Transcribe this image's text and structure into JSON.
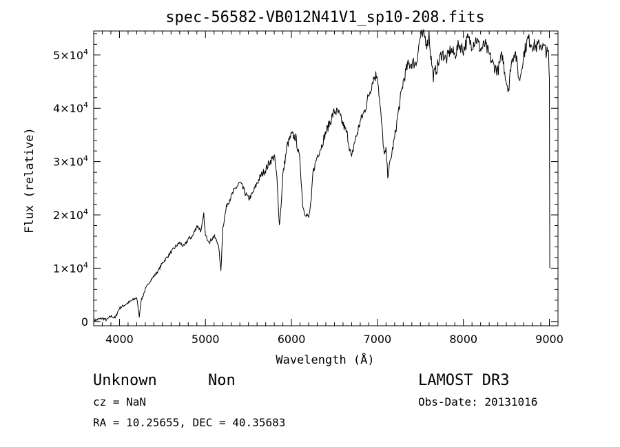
{
  "chart_data": {
    "type": "line",
    "title": "spec-56582-VB012N41V1_sp10-208.fits",
    "xlabel": "Wavelength (Å)",
    "ylabel": "Flux (relative)",
    "xlim": [
      3700,
      9100
    ],
    "ylim": [
      -800,
      54500
    ],
    "xticks": [
      4000,
      5000,
      6000,
      7000,
      8000,
      9000
    ],
    "xtick_labels": [
      "4000",
      "5000",
      "6000",
      "7000",
      "8000",
      "9000"
    ],
    "yticks": [
      0,
      10000,
      20000,
      30000,
      40000,
      50000
    ],
    "ytick_labels": [
      {
        "mant": "0",
        "exp": ""
      },
      {
        "mant": "1×10",
        "exp": "4"
      },
      {
        "mant": "2×10",
        "exp": "4"
      },
      {
        "mant": "3×10",
        "exp": "4"
      },
      {
        "mant": "4×10",
        "exp": "4"
      },
      {
        "mant": "5×10",
        "exp": "4"
      }
    ],
    "grid": false,
    "series": [
      {
        "name": "flux",
        "x": [
          3710,
          3750,
          3800,
          3850,
          3900,
          3950,
          3980,
          4000,
          4050,
          4100,
          4150,
          4200,
          4230,
          4250,
          4300,
          4350,
          4400,
          4450,
          4500,
          4550,
          4600,
          4650,
          4700,
          4750,
          4800,
          4850,
          4900,
          4950,
          4980,
          5000,
          5050,
          5100,
          5150,
          5180,
          5200,
          5250,
          5300,
          5350,
          5400,
          5450,
          5500,
          5550,
          5600,
          5650,
          5700,
          5750,
          5800,
          5830,
          5860,
          5880,
          5900,
          5950,
          6000,
          6050,
          6100,
          6130,
          6150,
          6200,
          6230,
          6250,
          6300,
          6350,
          6400,
          6450,
          6500,
          6550,
          6600,
          6650,
          6700,
          6730,
          6760,
          6800,
          6850,
          6900,
          6950,
          7000,
          7030,
          7060,
          7080,
          7100,
          7120,
          7150,
          7200,
          7250,
          7300,
          7350,
          7400,
          7450,
          7500,
          7550,
          7580,
          7600,
          7620,
          7650,
          7700,
          7750,
          7800,
          7850,
          7900,
          7950,
          8000,
          8050,
          8100,
          8150,
          8200,
          8250,
          8300,
          8350,
          8400,
          8450,
          8500,
          8530,
          8550,
          8600,
          8650,
          8700,
          8750,
          8800,
          8850,
          8900,
          8950,
          8990,
          9000,
          9005
        ],
        "y": [
          200,
          400,
          600,
          300,
          1000,
          700,
          1800,
          2500,
          3000,
          3500,
          4000,
          4500,
          1000,
          3800,
          6000,
          7500,
          8500,
          9500,
          11000,
          12000,
          13000,
          14000,
          14800,
          14000,
          15500,
          16000,
          18000,
          17000,
          20000,
          16000,
          15000,
          16000,
          14500,
          9500,
          17500,
          22000,
          23500,
          25000,
          26000,
          24500,
          23000,
          24000,
          26000,
          27500,
          28500,
          30000,
          31000,
          27000,
          18000,
          22000,
          27500,
          33000,
          35000,
          34500,
          30000,
          22000,
          20500,
          19500,
          22500,
          28000,
          31000,
          33000,
          35500,
          37500,
          39500,
          39000,
          37000,
          35000,
          30500,
          33500,
          35000,
          37500,
          39500,
          42500,
          45500,
          46500,
          40500,
          35000,
          31000,
          32000,
          27500,
          30000,
          34500,
          40000,
          45000,
          48000,
          48500,
          48500,
          53500,
          53500,
          52000,
          54000,
          50000,
          46000,
          48000,
          50500,
          49000,
          51000,
          50000,
          52000,
          51000,
          53000,
          52000,
          53000,
          51000,
          52000,
          50000,
          48000,
          47000,
          50000,
          45000,
          43500,
          48000,
          51000,
          45000,
          50000,
          53000,
          52000,
          51500,
          52000,
          51000,
          50000,
          45000,
          10000
        ]
      }
    ]
  },
  "annotations": {
    "object_class": "Unknown",
    "object_subclass": "Non",
    "survey": "LAMOST DR3",
    "redshift": "cz = NaN",
    "obs_date": "Obs-Date: 20131016",
    "coords": "RA =  10.25655, DEC =  40.35683"
  }
}
